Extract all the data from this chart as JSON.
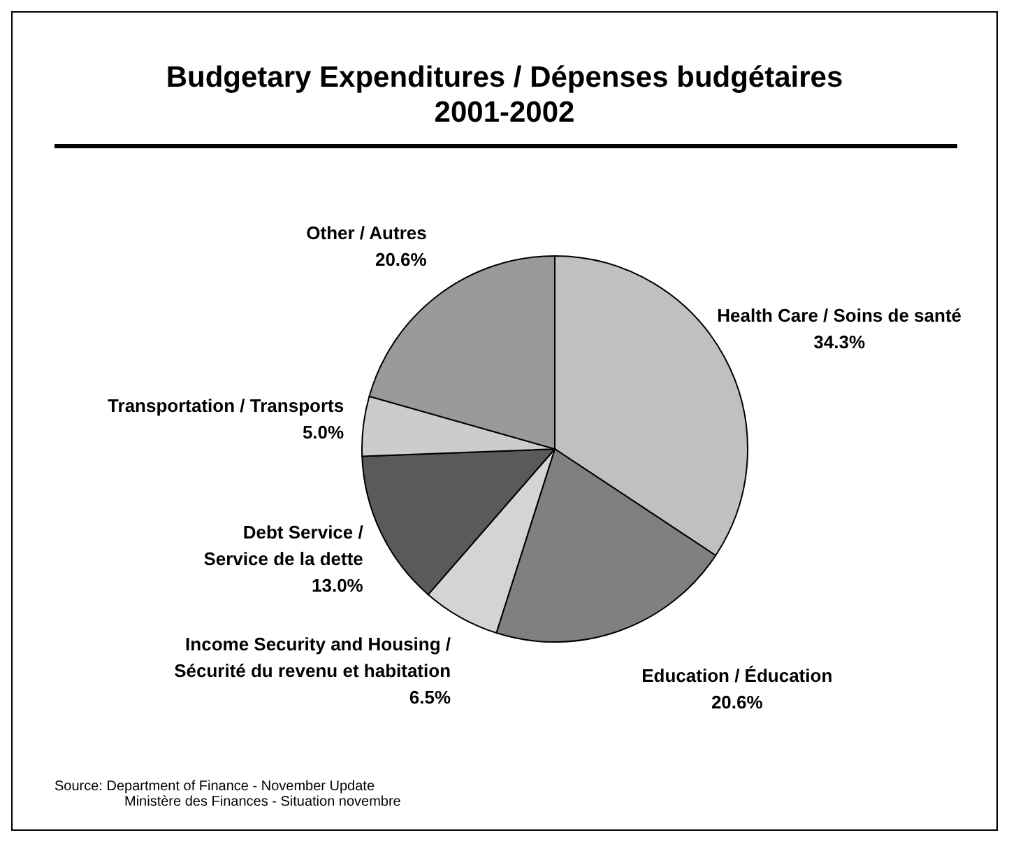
{
  "chart_data": {
    "type": "pie",
    "title": "Budgetary Expenditures / Dépenses budgétaires 2001-2002",
    "categories": [
      "Health Care / Soins de santé",
      "Education / Éducation",
      "Income Security and Housing / Sécurité du revenu et habitation",
      "Debt Service / Service de la dette",
      "Transportation / Transports",
      "Other / Autres"
    ],
    "values": [
      34.3,
      20.6,
      6.5,
      13.0,
      5.0,
      20.6
    ],
    "colors": [
      "#c0c0c0",
      "#808080",
      "#d4d4d4",
      "#5a5a5a",
      "#cccccc",
      "#9a9a9a"
    ],
    "value_labels": [
      "34.3%",
      "20.6%",
      "6.5%",
      "13.0%",
      "5.0%",
      "20.6%"
    ],
    "annotations": [
      "Source: Department of Finance - November Update",
      "Ministère des Finances - Situation novembre"
    ]
  }
}
